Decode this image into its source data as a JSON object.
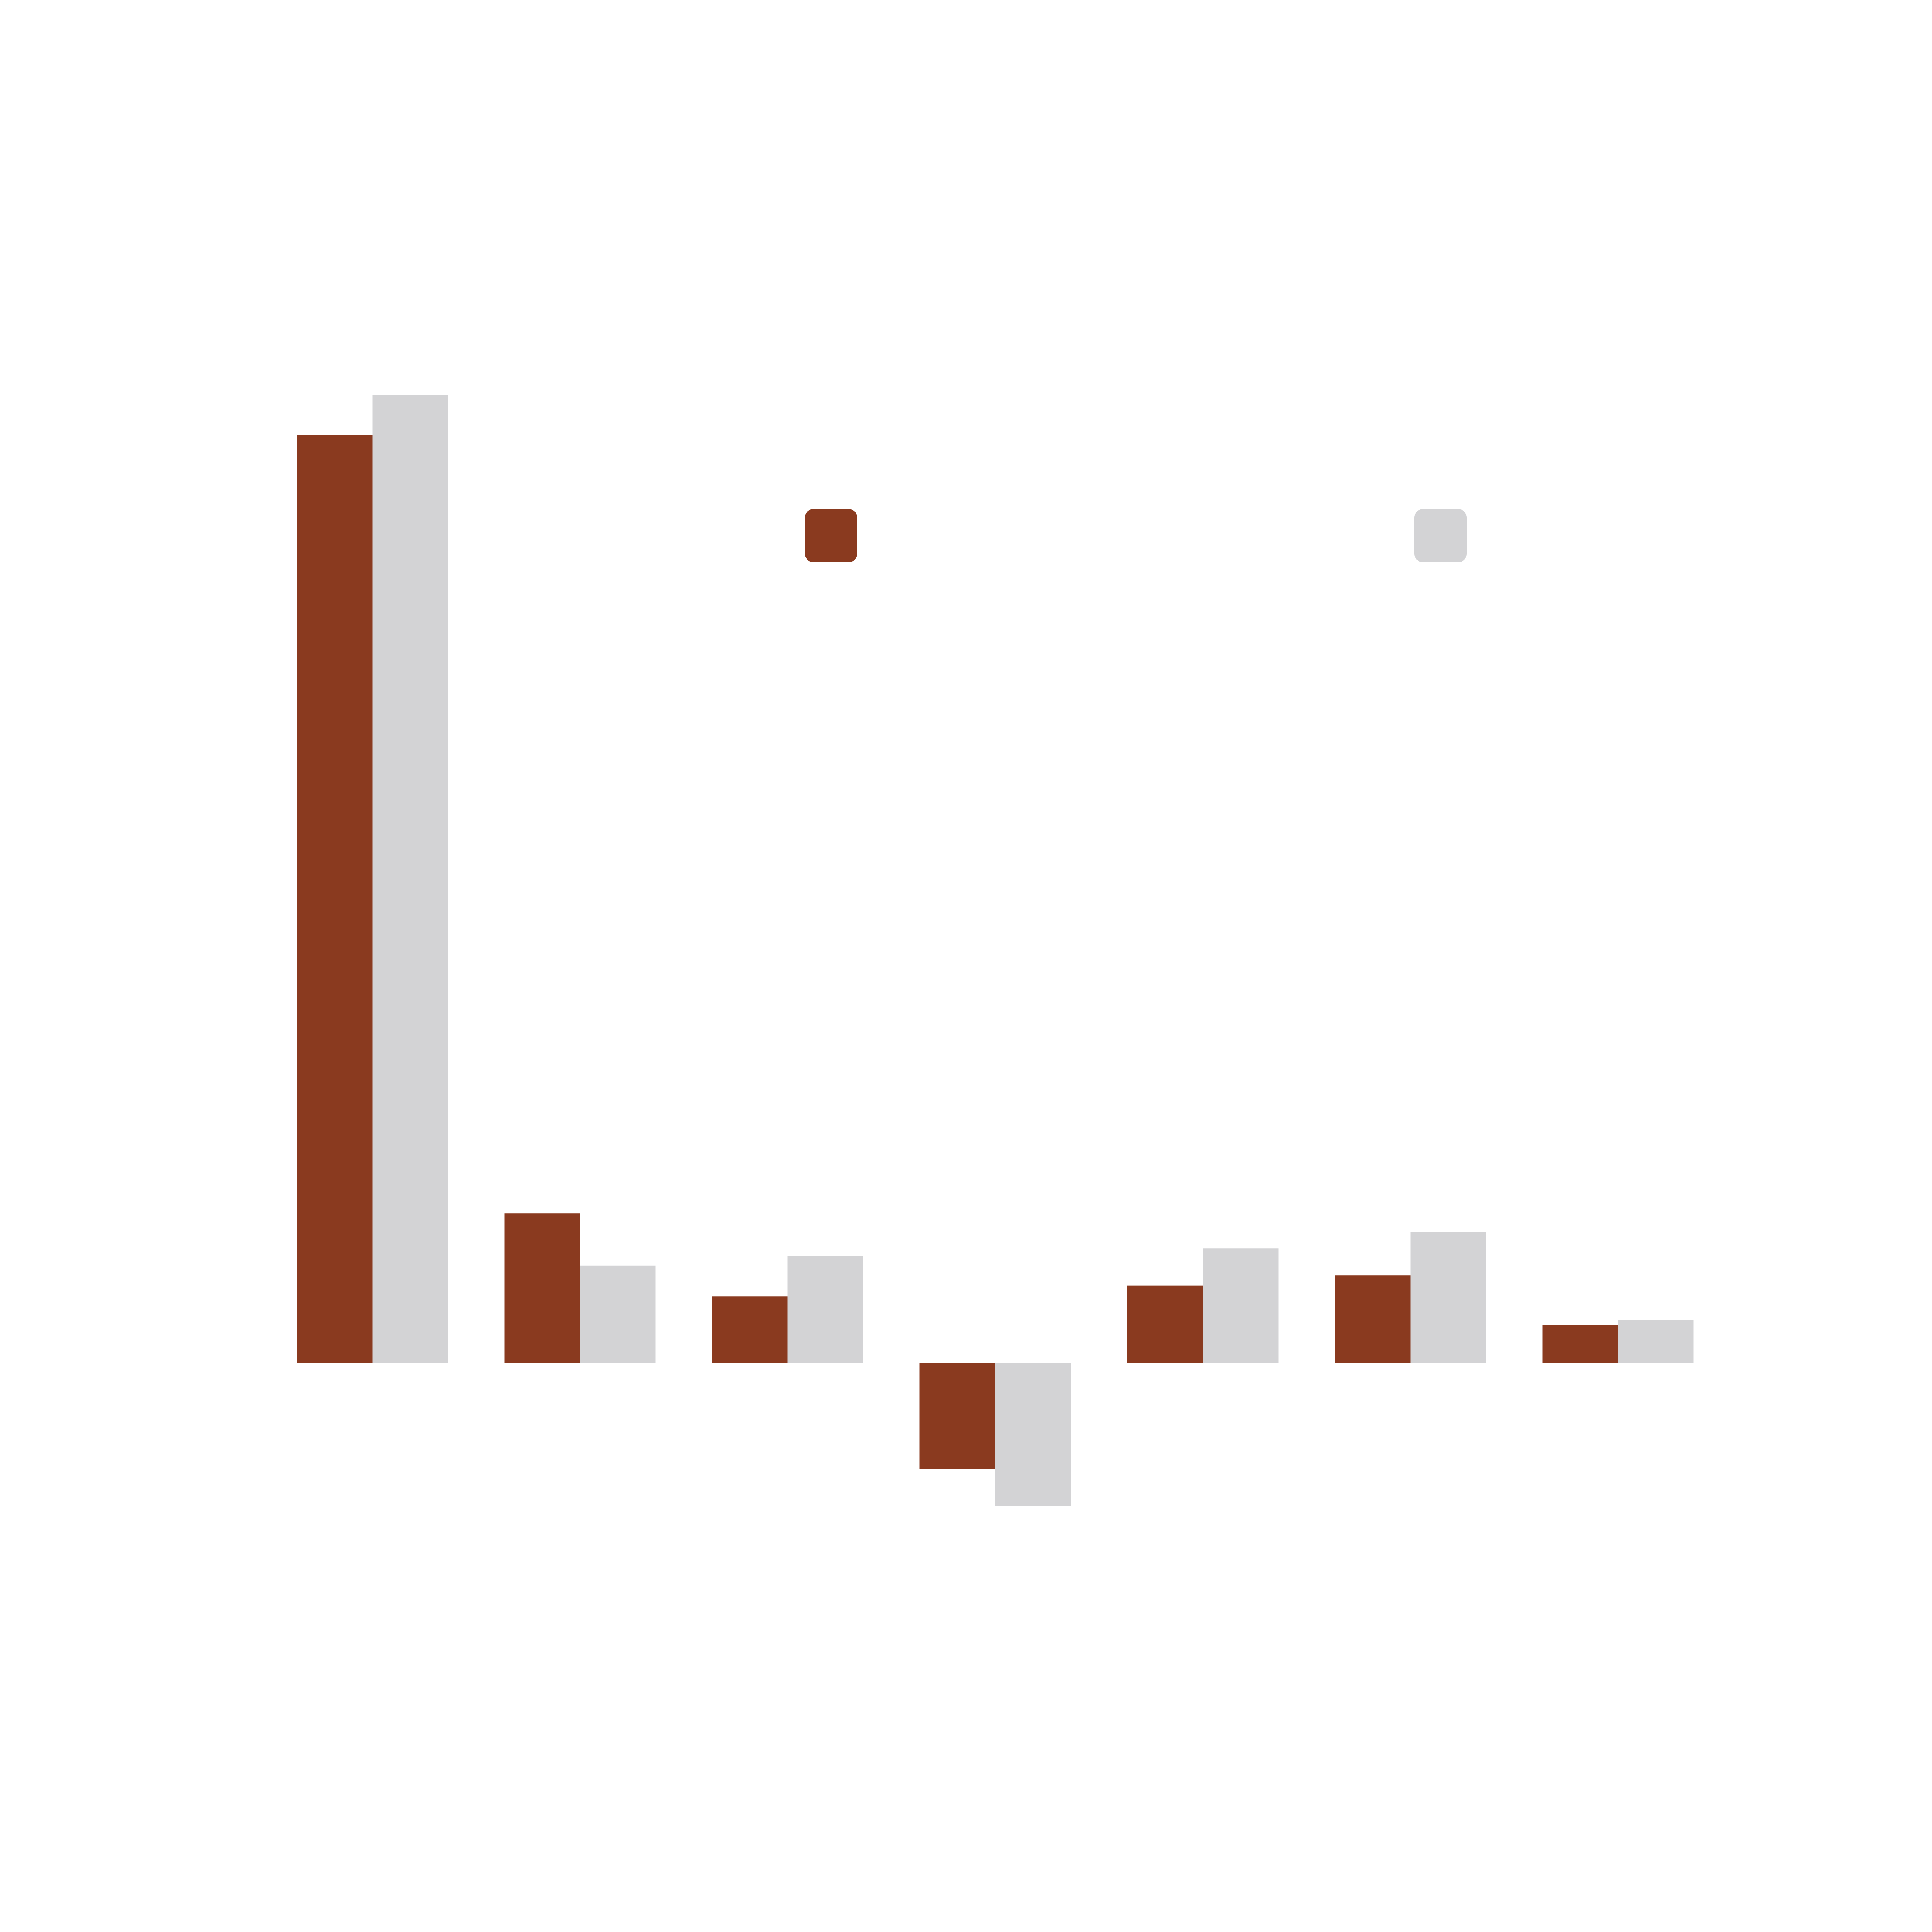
{
  "chart_data": {
    "type": "bar",
    "categories": [
      null,
      null,
      null,
      null,
      null,
      null,
      null
    ],
    "series": [
      {
        "color": "#8a3a1f",
        "values": [
          750,
          121,
          54,
          -85,
          63,
          71,
          31
        ]
      },
      {
        "color": "#d3d3d5",
        "values": [
          782,
          79,
          87,
          -115,
          93,
          106,
          35
        ]
      }
    ],
    "ylim": [
      -150,
      800
    ],
    "grid": false
  }
}
